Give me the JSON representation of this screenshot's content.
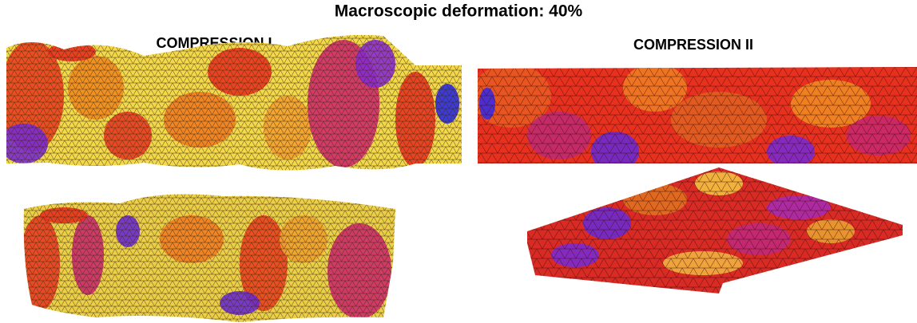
{
  "header": {
    "title": "Macroscopic deformation: 40%"
  },
  "panels": [
    {
      "label": "COMPRESSION I"
    },
    {
      "label": "COMPRESSION II"
    }
  ]
}
